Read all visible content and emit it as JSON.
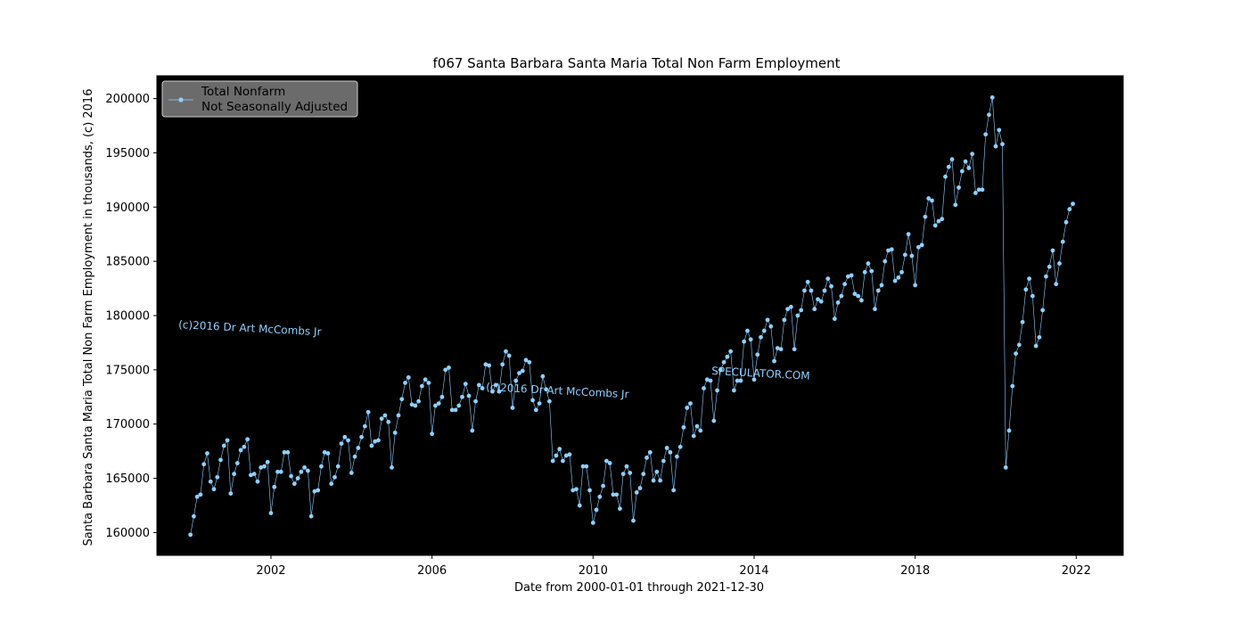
{
  "chart_data": {
    "type": "line",
    "title": "f067 Santa Barbara Santa Maria Total Non Farm Employment",
    "xlabel": "Date from 2000-01-01 through 2021-12-30",
    "ylabel": "Santa Barbara Santa Maria Total Non Farm Employment in thousands, (c) 2016",
    "xlim": [
      "1999-03-01",
      "2023-03-01"
    ],
    "ylim": [
      157900,
      202100
    ],
    "x_ticks": [
      "2002",
      "2006",
      "2010",
      "2014",
      "2018",
      "2022"
    ],
    "y_ticks": [
      "160000",
      "165000",
      "170000",
      "175000",
      "180000",
      "185000",
      "190000",
      "195000",
      "200000"
    ],
    "grid": false,
    "legend_position": "upper-left",
    "background": "#000000",
    "series": [
      {
        "name": "Total Nonfarm",
        "name_line2": "Not Seasonally Adjusted",
        "color": "#8fd0ff",
        "start": "2000-01",
        "frequency": "monthly",
        "values": [
          159800,
          161500,
          163300,
          163500,
          166300,
          167300,
          164700,
          164000,
          165100,
          166700,
          168000,
          168500,
          163600,
          165400,
          166400,
          167600,
          167900,
          168600,
          165300,
          165400,
          164700,
          166000,
          166100,
          166500,
          161800,
          164200,
          165600,
          165600,
          167400,
          167400,
          165200,
          164500,
          165000,
          165600,
          166000,
          165700,
          161500,
          163800,
          163900,
          166100,
          167400,
          167300,
          164500,
          165100,
          166100,
          168200,
          168800,
          168500,
          165500,
          167000,
          167800,
          168800,
          169800,
          171100,
          168000,
          168400,
          168500,
          170500,
          170800,
          170200,
          166000,
          169200,
          170800,
          172300,
          173800,
          174300,
          171800,
          171700,
          172100,
          173500,
          174100,
          173800,
          169100,
          171700,
          171900,
          172500,
          175000,
          175200,
          171300,
          171300,
          171700,
          172500,
          173700,
          172600,
          169400,
          172100,
          173600,
          173300,
          175500,
          175400,
          173000,
          173600,
          173000,
          175500,
          176700,
          176300,
          171500,
          174000,
          174700,
          174900,
          175900,
          175700,
          172200,
          171300,
          171900,
          174400,
          173200,
          172100,
          166600,
          167100,
          167700,
          166600,
          167100,
          167200,
          163900,
          164000,
          162500,
          166100,
          166100,
          163900,
          160900,
          162100,
          163300,
          164300,
          166600,
          166400,
          163500,
          163500,
          162200,
          165400,
          166100,
          165500,
          161100,
          163700,
          164100,
          165400,
          166900,
          167400,
          164800,
          165600,
          164800,
          166600,
          167800,
          167400,
          163900,
          167000,
          167900,
          169700,
          171500,
          171900,
          168900,
          169800,
          169400,
          173300,
          174100,
          174000,
          170300,
          173100,
          175000,
          175700,
          176200,
          176700,
          173100,
          174000,
          174000,
          177600,
          178600,
          177800,
          174100,
          176400,
          178000,
          178600,
          179600,
          179000,
          175800,
          177000,
          176900,
          179600,
          180600,
          180800,
          176900,
          180000,
          180500,
          182300,
          183100,
          182300,
          180600,
          181500,
          181300,
          182300,
          183400,
          182700,
          179700,
          181200,
          181800,
          182900,
          183600,
          183700,
          182000,
          181800,
          181400,
          184000,
          184800,
          184100,
          180600,
          182300,
          182800,
          185000,
          186000,
          186100,
          183200,
          183500,
          184000,
          185600,
          187500,
          185500,
          182800,
          186300,
          186500,
          189100,
          190800,
          190600,
          188300,
          188700,
          188900,
          192800,
          193700,
          194400,
          190200,
          191800,
          193300,
          194200,
          193600,
          194900,
          191300,
          191600,
          191600,
          196700,
          198500,
          200100,
          195600,
          197100,
          195800,
          166000,
          169400,
          173500,
          176500,
          177300,
          179400,
          182400,
          183400,
          181800,
          177200,
          178000,
          180500,
          183600,
          184500,
          186000,
          182900,
          184800,
          186800,
          188600,
          189800,
          190300
        ]
      }
    ],
    "annotations": [
      "(c)2016 Dr Art McCombs Jr",
      "(c)2016 Dr Art McCombs Jr",
      "SPECULATOR.COM"
    ]
  }
}
